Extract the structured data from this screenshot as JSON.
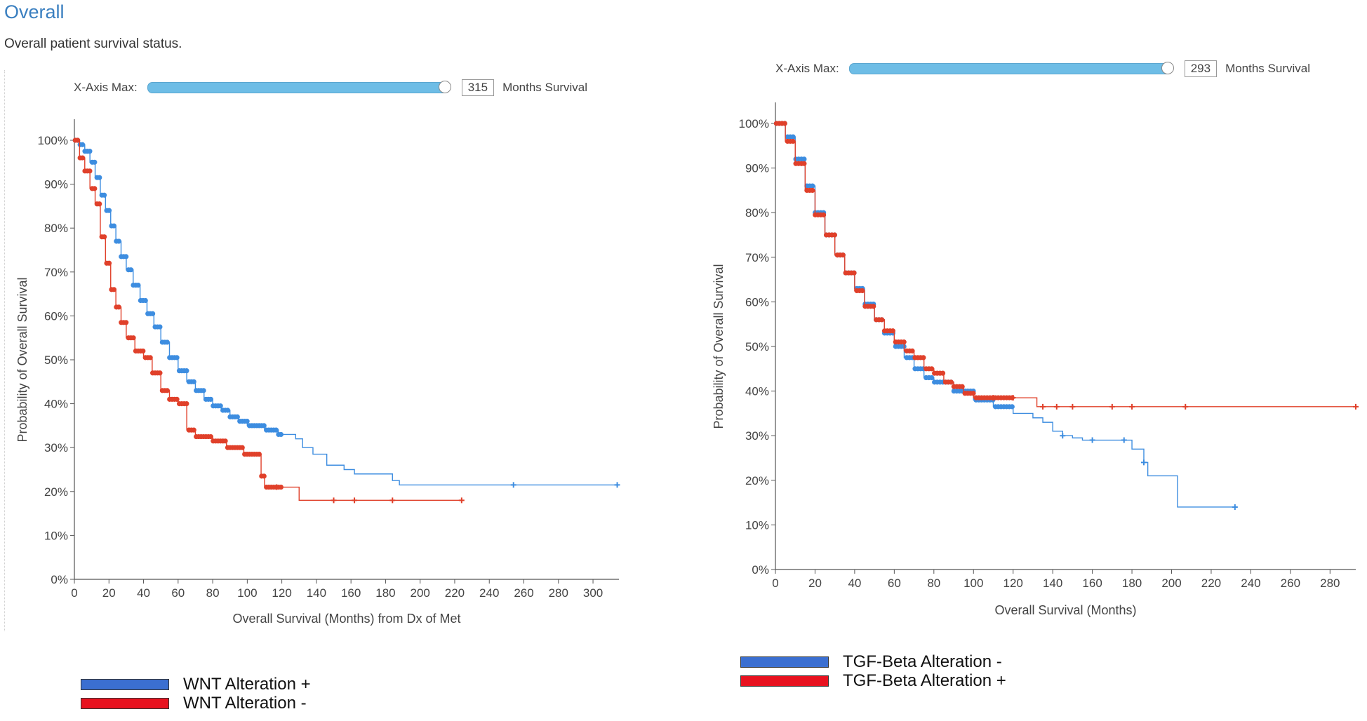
{
  "header": {
    "title": "Overall",
    "subtitle": "Overall patient survival status."
  },
  "left": {
    "xaxis_control": {
      "label": "X-Axis Max:",
      "value": "315",
      "unit": "Months Survival"
    },
    "legend": [
      {
        "label": "WNT Alteration +",
        "color": "#3b6fd1"
      },
      {
        "label": "WNT Alteration -",
        "color": "#e8121f"
      }
    ]
  },
  "right": {
    "xaxis_control": {
      "label": "X-Axis Max:",
      "value": "293",
      "unit": "Months Survival"
    },
    "legend": [
      {
        "label": "TGF-Beta  Alteration -",
        "color": "#3b6fd1"
      },
      {
        "label": "TGF-Beta  Alteration +",
        "color": "#e8121f"
      }
    ]
  },
  "chart_data": [
    {
      "type": "line",
      "title": "",
      "xlabel": "Overall Survival (Months) from Dx of Met",
      "ylabel": "Probability of Overall Survival",
      "xlim": [
        0,
        315
      ],
      "ylim": [
        0,
        100
      ],
      "xticks": [
        0,
        20,
        40,
        60,
        80,
        100,
        120,
        140,
        160,
        180,
        200,
        220,
        240,
        260,
        280,
        300
      ],
      "yticks": [
        0,
        10,
        20,
        30,
        40,
        50,
        60,
        70,
        80,
        90,
        100
      ],
      "series": [
        {
          "name": "WNT Alteration +",
          "color": "#3d8de0",
          "points": [
            [
              0,
              100
            ],
            [
              3,
              99
            ],
            [
              6,
              97.5
            ],
            [
              9,
              95
            ],
            [
              12,
              91.5
            ],
            [
              15,
              87.5
            ],
            [
              18,
              84
            ],
            [
              21,
              80.5
            ],
            [
              24,
              77
            ],
            [
              27,
              73.5
            ],
            [
              30,
              70.5
            ],
            [
              34,
              67
            ],
            [
              38,
              63.5
            ],
            [
              42,
              60.5
            ],
            [
              46,
              57.5
            ],
            [
              50,
              54
            ],
            [
              55,
              50.5
            ],
            [
              60,
              47.5
            ],
            [
              65,
              45
            ],
            [
              70,
              43
            ],
            [
              75,
              41
            ],
            [
              80,
              39.5
            ],
            [
              85,
              38.5
            ],
            [
              90,
              37
            ],
            [
              95,
              36
            ],
            [
              100,
              35
            ],
            [
              110,
              34
            ],
            [
              118,
              33
            ],
            [
              128,
              32
            ],
            [
              132,
              30
            ],
            [
              138,
              28.5
            ],
            [
              146,
              26
            ],
            [
              156,
              25
            ],
            [
              162,
              24
            ],
            [
              184,
              22.5
            ],
            [
              188,
              21.5
            ],
            [
              315,
              21.5
            ]
          ],
          "censored_x": [
            254,
            314
          ]
        },
        {
          "name": "WNT Alteration -",
          "color": "#e0402a",
          "points": [
            [
              0,
              100
            ],
            [
              3,
              96
            ],
            [
              6,
              93
            ],
            [
              9,
              89
            ],
            [
              12,
              85.5
            ],
            [
              15,
              78
            ],
            [
              18,
              72
            ],
            [
              21,
              66
            ],
            [
              24,
              62
            ],
            [
              27,
              58.5
            ],
            [
              30,
              55
            ],
            [
              35,
              52
            ],
            [
              40,
              50.5
            ],
            [
              45,
              47
            ],
            [
              50,
              43
            ],
            [
              55,
              41
            ],
            [
              60,
              40
            ],
            [
              65,
              34
            ],
            [
              70,
              32.5
            ],
            [
              80,
              31.5
            ],
            [
              88,
              30
            ],
            [
              98,
              28.5
            ],
            [
              108,
              23.5
            ],
            [
              110,
              21
            ],
            [
              128,
              21
            ],
            [
              130,
              18
            ],
            [
              225,
              18
            ]
          ],
          "censored_x": [
            117,
            150,
            162,
            184,
            224
          ]
        }
      ]
    },
    {
      "type": "line",
      "title": "",
      "xlabel": "Overall Survival (Months)",
      "ylabel": "Probability of Overall Survival",
      "xlim": [
        0,
        293
      ],
      "ylim": [
        0,
        100
      ],
      "xticks": [
        0,
        20,
        40,
        60,
        80,
        100,
        120,
        140,
        160,
        180,
        200,
        220,
        240,
        260,
        280
      ],
      "yticks": [
        0,
        10,
        20,
        30,
        40,
        50,
        60,
        70,
        80,
        90,
        100
      ],
      "series": [
        {
          "name": "TGF-Beta  Alteration -",
          "color": "#3d8de0",
          "points": [
            [
              0,
              100
            ],
            [
              5,
              97
            ],
            [
              10,
              92
            ],
            [
              15,
              86
            ],
            [
              20,
              80
            ],
            [
              25,
              75
            ],
            [
              30,
              70.5
            ],
            [
              35,
              66.5
            ],
            [
              40,
              63
            ],
            [
              45,
              59.5
            ],
            [
              50,
              56
            ],
            [
              55,
              53
            ],
            [
              60,
              50
            ],
            [
              65,
              47.5
            ],
            [
              70,
              45
            ],
            [
              75,
              43
            ],
            [
              80,
              42
            ],
            [
              90,
              40
            ],
            [
              100,
              38
            ],
            [
              110,
              36.5
            ],
            [
              120,
              35
            ],
            [
              130,
              34
            ],
            [
              135,
              33
            ],
            [
              140,
              31
            ],
            [
              145,
              30
            ],
            [
              150,
              29.5
            ],
            [
              155,
              29
            ],
            [
              178,
              29
            ],
            [
              180,
              27
            ],
            [
              186,
              24
            ],
            [
              188,
              21
            ],
            [
              200,
              21
            ],
            [
              203,
              14
            ],
            [
              232,
              14
            ]
          ],
          "censored_x": [
            145,
            160,
            176,
            186,
            232
          ]
        },
        {
          "name": "TGF-Beta  Alteration +",
          "color": "#e0402a",
          "points": [
            [
              0,
              100
            ],
            [
              5,
              96
            ],
            [
              10,
              91
            ],
            [
              15,
              85
            ],
            [
              20,
              79.5
            ],
            [
              25,
              75
            ],
            [
              30,
              70.5
            ],
            [
              35,
              66.5
            ],
            [
              40,
              62.5
            ],
            [
              45,
              59
            ],
            [
              50,
              56
            ],
            [
              55,
              53.5
            ],
            [
              60,
              51
            ],
            [
              65,
              49
            ],
            [
              70,
              47.5
            ],
            [
              75,
              45
            ],
            [
              80,
              44
            ],
            [
              85,
              42
            ],
            [
              90,
              41
            ],
            [
              95,
              39.5
            ],
            [
              100,
              38.5
            ],
            [
              130,
              38.5
            ],
            [
              132,
              36.5
            ],
            [
              293,
              36.5
            ]
          ],
          "censored_x": [
            110,
            120,
            135,
            142,
            150,
            170,
            180,
            207,
            293
          ]
        }
      ]
    }
  ]
}
